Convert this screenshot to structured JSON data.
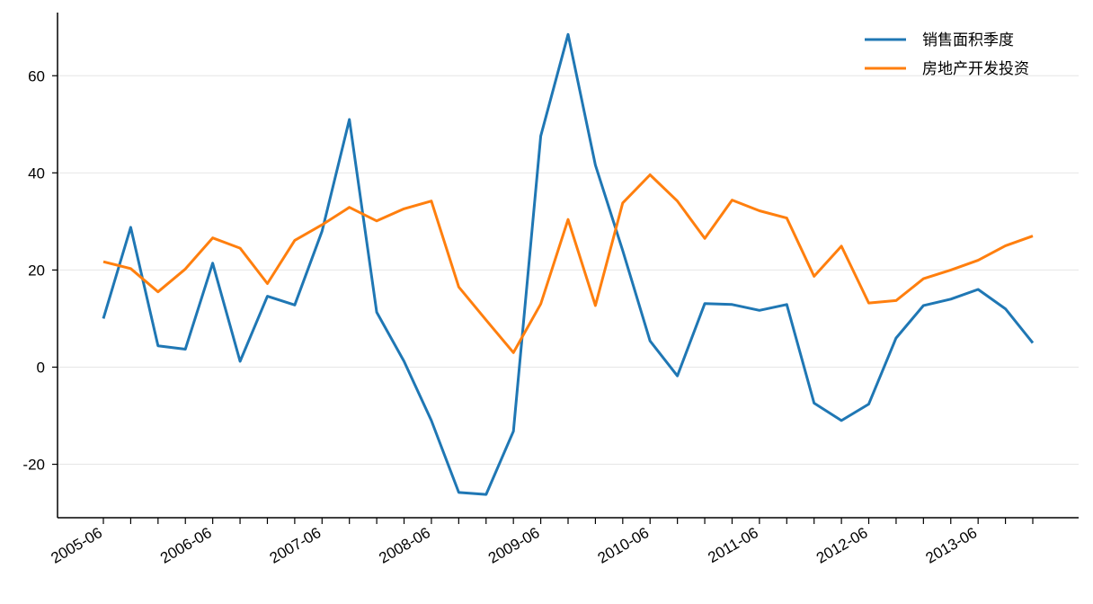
{
  "chart_data": {
    "type": "line",
    "title": "",
    "xlabel": "",
    "ylabel": "",
    "x": [
      "2005-06",
      "2005-09",
      "2005-12",
      "2006-03",
      "2006-06",
      "2006-09",
      "2006-12",
      "2007-03",
      "2007-06",
      "2007-09",
      "2007-12",
      "2008-03",
      "2008-06",
      "2008-09",
      "2008-12",
      "2009-03",
      "2009-06",
      "2009-09",
      "2009-12",
      "2010-03",
      "2010-06",
      "2010-09",
      "2010-12",
      "2011-03",
      "2011-06",
      "2011-09",
      "2011-12",
      "2012-03",
      "2012-06",
      "2012-09",
      "2012-12",
      "2013-03",
      "2013-06",
      "2013-09",
      "2013-12"
    ],
    "x_tick_labels": [
      "2005-06",
      "2006-06",
      "2007-06",
      "2008-06",
      "2009-06",
      "2010-06",
      "2011-06",
      "2012-06",
      "2013-06"
    ],
    "y_ticks": [
      -20,
      0,
      20,
      40,
      60
    ],
    "ylim": [
      -31,
      73
    ],
    "grid": "horizontal",
    "legend_position": "top-right",
    "series": [
      {
        "name": "销售面积季度",
        "color": "#1f77b4",
        "values": [
          10,
          28.8,
          4.4,
          3.7,
          21.4,
          1.2,
          14.6,
          12.8,
          28,
          51,
          11.3,
          1.2,
          -11,
          -25.8,
          -26.2,
          -13.2,
          47.6,
          68.5,
          41.6,
          24,
          5.4,
          -1.8,
          13.1,
          12.9,
          11.7,
          12.9,
          -7.4,
          -11,
          -7.6,
          6,
          12.7,
          14,
          16,
          12,
          5
        ]
      },
      {
        "name": "房地产开发投资",
        "color": "#ff7f0e",
        "values": [
          21.7,
          20.3,
          15.5,
          20.2,
          26.6,
          24.5,
          17.2,
          26.1,
          29.3,
          32.9,
          30.1,
          32.6,
          34.2,
          16.5,
          9.7,
          3,
          13,
          30.4,
          12.7,
          33.8,
          39.6,
          34.2,
          26.5,
          34.4,
          32.2,
          30.7,
          18.7,
          24.9,
          13.2,
          13.7,
          18.2,
          20,
          22,
          25,
          27
        ]
      }
    ]
  }
}
